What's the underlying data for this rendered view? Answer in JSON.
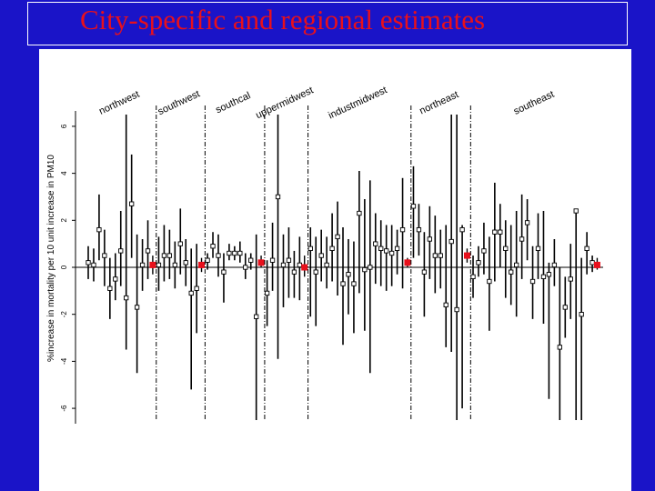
{
  "slide": {
    "title": "City-specific and regional estimates",
    "colors": {
      "background": "#1a14c8",
      "title": "#e8101c",
      "panel": "#ffffff",
      "regional_marker": "#e8101c"
    }
  },
  "chart_data": {
    "type": "scatter",
    "title": "",
    "xlabel": "",
    "ylabel": "%increase in mortality per 10 unit increase in PM10",
    "ylim": [
      -6.5,
      6.5
    ],
    "yticks": [
      -6,
      -4,
      -2,
      0,
      2,
      4,
      6
    ],
    "grid": false,
    "reference_line": 0,
    "regions": [
      {
        "name": "northwest",
        "estimate": 0.1,
        "low": -0.3,
        "high": 0.5,
        "cities": [
          {
            "est": 0.2,
            "low": -0.5,
            "high": 0.9
          },
          {
            "est": 0.1,
            "low": -0.6,
            "high": 0.8
          },
          {
            "est": 1.6,
            "low": 0.3,
            "high": 3.1
          },
          {
            "est": 0.5,
            "low": -0.8,
            "high": 1.6
          },
          {
            "est": -0.9,
            "low": -2.2,
            "high": 0.4
          },
          {
            "est": -0.5,
            "low": -1.4,
            "high": 0.6
          },
          {
            "est": 0.7,
            "low": -0.8,
            "high": 2.4
          },
          {
            "est": -1.3,
            "low": -3.5,
            "high": 6.5
          },
          {
            "est": 2.7,
            "low": 0.4,
            "high": 4.8
          },
          {
            "est": -1.7,
            "low": -4.5,
            "high": 1.4
          },
          {
            "est": 0.1,
            "low": -1.0,
            "high": 1.2
          },
          {
            "est": 0.7,
            "low": -0.5,
            "high": 2.0
          }
        ]
      },
      {
        "name": "southwest",
        "estimate": 0.1,
        "low": -0.2,
        "high": 0.4,
        "cities": [
          {
            "est": 0.1,
            "low": -1.0,
            "high": 1.3
          },
          {
            "est": 0.5,
            "low": -0.6,
            "high": 1.8
          },
          {
            "est": 0.5,
            "low": -0.5,
            "high": 1.6
          },
          {
            "est": 0.1,
            "low": -0.9,
            "high": 1.1
          },
          {
            "est": 1.0,
            "low": -0.3,
            "high": 2.5
          },
          {
            "est": 0.2,
            "low": -0.8,
            "high": 1.2
          },
          {
            "est": -1.1,
            "low": -5.2,
            "high": 0.8
          },
          {
            "est": -0.9,
            "low": -2.8,
            "high": 1.0
          }
        ]
      },
      {
        "name": "southcal",
        "estimate": 0.2,
        "low": 0.0,
        "high": 0.5,
        "cities": [
          {
            "est": 0.3,
            "low": -0.1,
            "high": 0.6
          },
          {
            "est": 0.9,
            "low": 0.4,
            "high": 1.5
          },
          {
            "est": 0.5,
            "low": -0.4,
            "high": 1.4
          },
          {
            "est": -0.2,
            "low": -1.5,
            "high": 0.6
          },
          {
            "est": 0.6,
            "low": 0.3,
            "high": 1.0
          },
          {
            "est": 0.6,
            "low": 0.3,
            "high": 0.9
          },
          {
            "est": 0.6,
            "low": 0.2,
            "high": 1.1
          },
          {
            "est": 0.0,
            "low": -0.5,
            "high": 0.6
          },
          {
            "est": 0.3,
            "low": -0.1,
            "high": 0.6
          },
          {
            "est": -2.1,
            "low": -6.5,
            "high": 1.4
          }
        ]
      },
      {
        "name": "uppermidwest",
        "estimate": 0.0,
        "low": -0.4,
        "high": 0.5,
        "cities": [
          {
            "est": -1.1,
            "low": -2.5,
            "high": 0.3
          },
          {
            "est": 0.3,
            "low": -1.0,
            "high": 1.9
          },
          {
            "est": 3.0,
            "low": -3.9,
            "high": 6.5
          },
          {
            "est": 0.1,
            "low": -1.7,
            "high": 1.4
          },
          {
            "est": 0.3,
            "low": -1.3,
            "high": 1.7
          },
          {
            "est": -0.2,
            "low": -1.3,
            "high": 0.7
          },
          {
            "est": 0.1,
            "low": -1.4,
            "high": 1.3
          }
        ]
      },
      {
        "name": "industmidwest",
        "estimate": 0.2,
        "low": 0.0,
        "high": 0.4,
        "cities": [
          {
            "est": 0.8,
            "low": -2.1,
            "high": 1.7
          },
          {
            "est": -0.2,
            "low": -2.5,
            "high": 1.3
          },
          {
            "est": 0.5,
            "low": -0.6,
            "high": 1.6
          },
          {
            "est": 0.1,
            "low": -0.9,
            "high": 1.3
          },
          {
            "est": 0.8,
            "low": -0.6,
            "high": 2.3
          },
          {
            "est": 1.3,
            "low": -1.2,
            "high": 2.8
          },
          {
            "est": -0.7,
            "low": -3.3,
            "high": 1.7
          },
          {
            "est": -0.3,
            "low": -2.0,
            "high": 1.2
          },
          {
            "est": -0.7,
            "low": -2.8,
            "high": 1.1
          },
          {
            "est": 2.3,
            "low": -1.1,
            "high": 4.1
          },
          {
            "est": -0.1,
            "low": -2.7,
            "high": 2.9
          },
          {
            "est": 0.0,
            "low": -4.5,
            "high": 3.7
          },
          {
            "est": 1.0,
            "low": -0.7,
            "high": 2.3
          },
          {
            "est": 0.8,
            "low": -0.8,
            "high": 2.0
          },
          {
            "est": 0.7,
            "low": -1.0,
            "high": 1.8
          },
          {
            "est": 0.6,
            "low": -0.8,
            "high": 1.8
          },
          {
            "est": 0.8,
            "low": -0.3,
            "high": 1.6
          },
          {
            "est": 1.6,
            "low": -0.9,
            "high": 3.8
          }
        ]
      },
      {
        "name": "northeast",
        "estimate": 0.5,
        "low": 0.2,
        "high": 0.8,
        "cities": [
          {
            "est": 2.6,
            "low": 0.4,
            "high": 4.3
          },
          {
            "est": 1.6,
            "low": 0.5,
            "high": 2.7
          },
          {
            "est": -0.2,
            "low": -2.1,
            "high": 1.5
          },
          {
            "est": 1.2,
            "low": -0.5,
            "high": 2.6
          },
          {
            "est": 0.5,
            "low": -1.1,
            "high": 2.2
          },
          {
            "est": 0.5,
            "low": -0.9,
            "high": 1.6
          },
          {
            "est": -1.6,
            "low": -3.4,
            "high": 1.8
          },
          {
            "est": 1.1,
            "low": -3.6,
            "high": 6.5
          },
          {
            "est": -1.8,
            "low": -6.5,
            "high": 6.5
          },
          {
            "est": 1.6,
            "low": -6.0,
            "high": 1.8
          }
        ]
      },
      {
        "name": "southeast",
        "estimate": 0.1,
        "low": -0.1,
        "high": 0.4,
        "cities": [
          {
            "est": -0.4,
            "low": -1.3,
            "high": 0.5
          },
          {
            "est": 0.2,
            "low": -0.4,
            "high": 0.9
          },
          {
            "est": 0.7,
            "low": -0.3,
            "high": 1.9
          },
          {
            "est": -0.6,
            "low": -2.7,
            "high": 1.3
          },
          {
            "est": 1.5,
            "low": -0.6,
            "high": 3.6
          },
          {
            "est": 1.5,
            "low": 0.0,
            "high": 2.7
          },
          {
            "est": 0.8,
            "low": -1.3,
            "high": 2.0
          },
          {
            "est": -0.2,
            "low": -1.6,
            "high": 1.8
          },
          {
            "est": 0.1,
            "low": -2.1,
            "high": 2.4
          },
          {
            "est": 1.2,
            "low": -0.5,
            "high": 3.1
          },
          {
            "est": 1.9,
            "low": 0.3,
            "high": 2.9
          },
          {
            "est": -0.6,
            "low": -2.2,
            "high": 0.9
          },
          {
            "est": 0.8,
            "low": -0.5,
            "high": 2.3
          },
          {
            "est": -0.4,
            "low": -2.4,
            "high": 2.4
          },
          {
            "est": -0.3,
            "low": -5.6,
            "high": 0.2
          },
          {
            "est": 0.1,
            "low": -0.8,
            "high": 1.2
          },
          {
            "est": -3.4,
            "low": -6.5,
            "high": 0.0
          },
          {
            "est": -1.7,
            "low": -3.0,
            "high": -0.4
          },
          {
            "est": -0.5,
            "low": -2.2,
            "high": 1.0
          },
          {
            "est": 2.4,
            "low": -6.5,
            "high": 2.4
          },
          {
            "est": -2.0,
            "low": -6.5,
            "high": 0.4
          },
          {
            "est": 0.8,
            "low": -0.3,
            "high": 1.5
          },
          {
            "est": 0.2,
            "low": -0.2,
            "high": 0.5
          }
        ]
      }
    ]
  }
}
